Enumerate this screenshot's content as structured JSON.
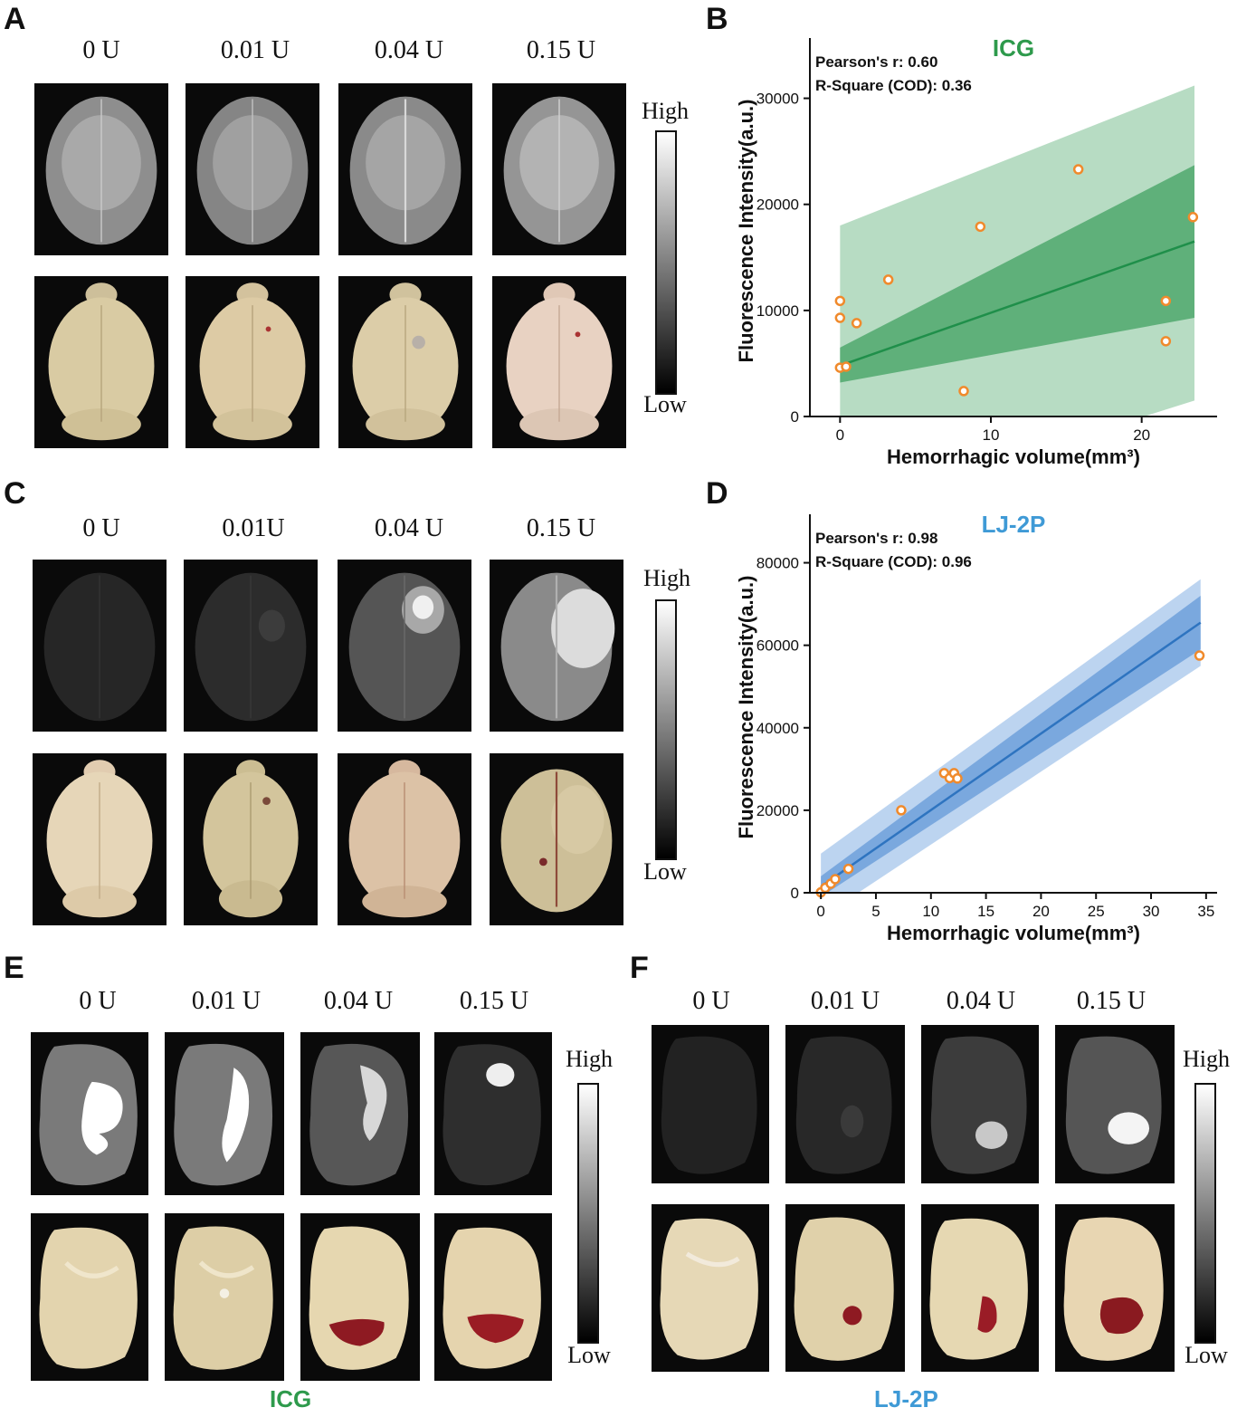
{
  "panels": {
    "A": {
      "letter": "A",
      "concentrations": [
        "0 U",
        "0.01 U",
        "0.04 U",
        "0.15 U"
      ],
      "colorbar": {
        "high": "High",
        "low": "Low"
      }
    },
    "C": {
      "letter": "C",
      "concentrations": [
        "0 U",
        "0.01U",
        "0.04 U",
        "0.15 U"
      ],
      "colorbar": {
        "high": "High",
        "low": "Low"
      }
    },
    "E": {
      "letter": "E",
      "concentrations": [
        "0 U",
        "0.01 U",
        "0.04 U",
        "0.15 U"
      ],
      "colorbar": {
        "high": "High",
        "low": "Low"
      },
      "caption": "ICG",
      "caption_color": "#2e9a4c"
    },
    "F": {
      "letter": "F",
      "concentrations": [
        "0 U",
        "0.01 U",
        "0.04 U",
        "0.15 U"
      ],
      "colorbar": {
        "high": "High",
        "low": "Low"
      },
      "caption": "LJ-2P",
      "caption_color": "#3f9ad6"
    }
  },
  "chart_data": [
    {
      "panel": "B",
      "type": "scatter",
      "title": "ICG",
      "title_color": "#2e9a4c",
      "xlabel": "Hemorrhagic volume(mm³)",
      "ylabel": "Fluorescence Intensity(a.u.)",
      "xlim": [
        -2,
        25
      ],
      "ylim": [
        0,
        35000
      ],
      "xticks": [
        0,
        10,
        20
      ],
      "yticks": [
        0,
        10000,
        20000,
        30000
      ],
      "stats": [
        "Pearson's r: 0.60",
        "R-Square (COD): 0.36"
      ],
      "fit": {
        "x0": 0,
        "y0": 4800,
        "x1": 23.5,
        "y1": 16500
      },
      "confidence_band": {
        "x": [
          0,
          23.5
        ],
        "lower": [
          3200,
          9300
        ],
        "upper": [
          6500,
          23700
        ]
      },
      "prediction_band": {
        "x": [
          0,
          23.5
        ],
        "lower": [
          -9000,
          1500
        ],
        "upper": [
          18000,
          31200
        ]
      },
      "colors": {
        "line": "#1f8f4a",
        "ci": "#5fb07a",
        "pi": "#b7dcc3",
        "points": "#f08a2c"
      },
      "points": {
        "x": [
          0,
          0,
          0,
          0.4,
          1.1,
          3.2,
          8.2,
          9.3,
          15.8,
          21.6,
          21.6,
          23.4
        ],
        "y": [
          10900,
          9300,
          4600,
          4700,
          8800,
          12900,
          2400,
          17900,
          23300,
          10900,
          7100,
          18800
        ]
      }
    },
    {
      "panel": "D",
      "type": "scatter",
      "title": "LJ-2P",
      "title_color": "#3f9ad6",
      "xlabel": "Hemorrhagic volume(mm³)",
      "ylabel": "Fluorescence Intensity(a.u.)",
      "xlim": [
        -1,
        36
      ],
      "ylim": [
        0,
        90000
      ],
      "xticks": [
        0,
        5,
        10,
        15,
        20,
        25,
        30,
        35
      ],
      "yticks": [
        0,
        20000,
        40000,
        60000,
        80000
      ],
      "stats": [
        "Pearson's r: 0.98",
        "R-Square (COD): 0.96"
      ],
      "fit": {
        "x0": 0,
        "y0": 1500,
        "x1": 34.5,
        "y1": 65500
      },
      "confidence_band": {
        "x": [
          0,
          34.5
        ],
        "lower": [
          -1000,
          59000
        ],
        "upper": [
          4000,
          72000
        ]
      },
      "prediction_band": {
        "x": [
          0,
          34.5
        ],
        "lower": [
          -6000,
          55000
        ],
        "upper": [
          9500,
          76000
        ]
      },
      "colors": {
        "line": "#2e74c0",
        "ci": "#7aa8de",
        "pi": "#bcd4f0",
        "points": "#f08a2c"
      },
      "points": {
        "x": [
          0,
          0.4,
          0.9,
          1.3,
          2.5,
          7.3,
          11.2,
          11.7,
          12.1,
          12.4,
          34.4
        ],
        "y": [
          100,
          1200,
          2200,
          3300,
          5800,
          20000,
          29000,
          27800,
          29000,
          27700,
          57500
        ]
      }
    }
  ]
}
